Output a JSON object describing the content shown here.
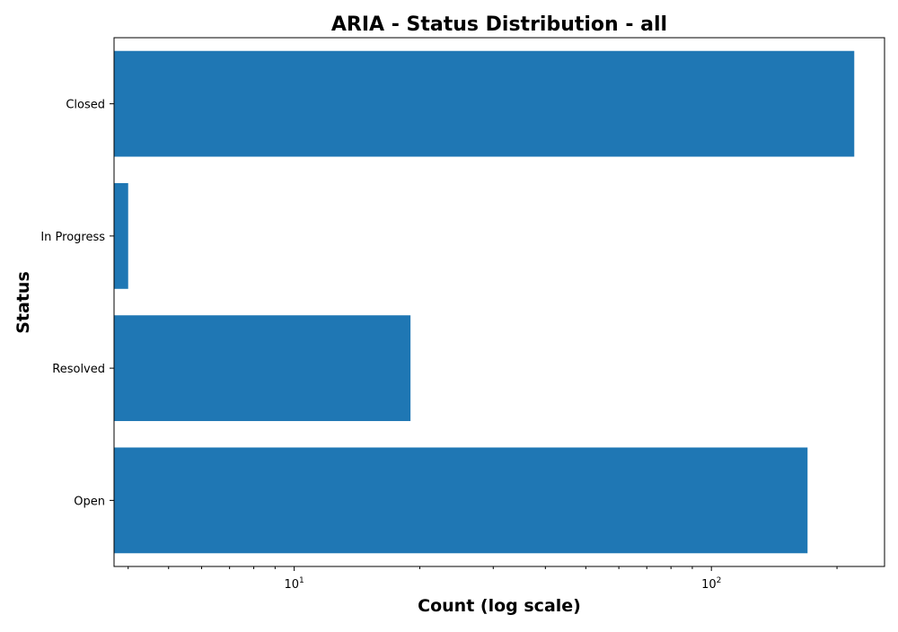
{
  "chart_data": {
    "type": "bar",
    "orientation": "horizontal",
    "title": "ARIA - Status Distribution - all",
    "xlabel": "Count (log scale)",
    "ylabel": "Status",
    "x_scale": "log",
    "xlim": [
      3.7,
      260
    ],
    "categories": [
      "Closed",
      "In Progress",
      "Resolved",
      "Open"
    ],
    "values": [
      220,
      4,
      19,
      170
    ],
    "x_major_ticks": [
      {
        "value": 10,
        "base": "10",
        "exponent": "1"
      },
      {
        "value": 100,
        "base": "10",
        "exponent": "2"
      }
    ],
    "x_minor_ticks": [
      4,
      5,
      6,
      7,
      8,
      9,
      20,
      30,
      40,
      50,
      60,
      70,
      80,
      90,
      200
    ],
    "grid": false,
    "bar_color": "#1f77b4",
    "legend": "none"
  }
}
